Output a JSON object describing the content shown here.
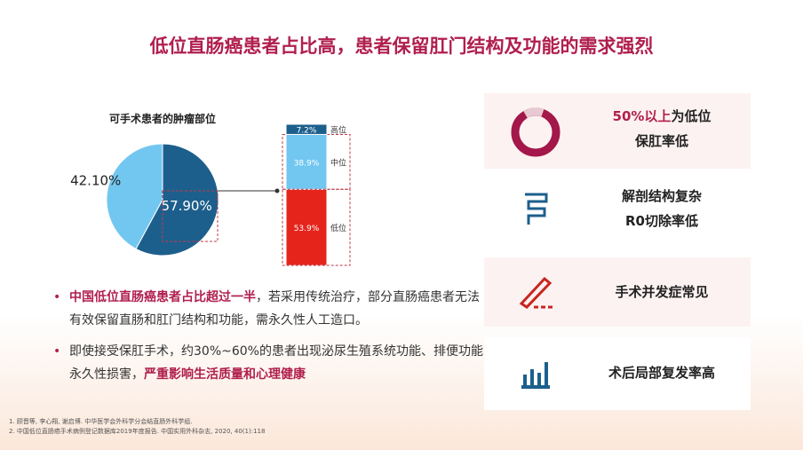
{
  "title": "低位直肠癌患者占比高，患者保留肛门结构及功能的需求强烈",
  "chart_data": [
    {
      "type": "pie",
      "title": "可手术患者的肿瘤部位",
      "values": [
        57.9,
        42.1
      ],
      "value_labels": [
        "57.90%",
        "42.10%"
      ],
      "colors": [
        "#1d5f8c",
        "#72c7f1"
      ]
    },
    {
      "type": "bar",
      "stacked": true,
      "categories": [
        null
      ],
      "series": [
        {
          "name": "低位",
          "color": "#e5251c",
          "values": [
            53.9
          ],
          "value_labels": [
            "53.9%"
          ]
        },
        {
          "name": "中位",
          "color": "#72c7f1",
          "values": [
            38.9
          ],
          "value_labels": [
            "38.9%"
          ]
        },
        {
          "name": "高位",
          "color": "#1d5f8c",
          "values": [
            7.2
          ],
          "value_labels": [
            "7.2%"
          ]
        }
      ]
    }
  ],
  "bullets": [
    {
      "highlight": "中国低位直肠癌患者占比超过一半",
      "text": "，若采用传统治疗，部分直肠癌患者无法有效保留直肠和肛门结构和功能，需永久性人工造口。"
    },
    {
      "text": "即使接受保肛手术，约30%~60%的患者出现泌尿生殖系统功能、排便功能永久性损害，",
      "highlight": "严重影响生活质量和心理健康"
    }
  ],
  "points": [
    {
      "emph": "50%以上",
      "line1": "为低位",
      "line2": "保肛率低"
    },
    {
      "line1": "解剖结构复杂",
      "line2": "R0切除率低"
    },
    {
      "line1": "手术并发症常见"
    },
    {
      "line1": "术后局部复发率高"
    }
  ],
  "references": [
    "1. 顾晋等, 李心翔, 谢启博. 中华医学会外科学分会结直肠外科学组.",
    "2. 中国低位直肠癌手术病例登记数据库2019年度报告. 中国实用外科杂志, 2020, 40(1):118"
  ]
}
